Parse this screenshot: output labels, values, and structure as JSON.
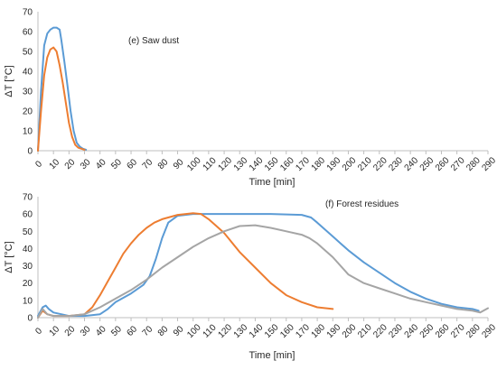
{
  "chart_data": [
    {
      "type": "line",
      "title": "",
      "annotation": "(e) Saw dust",
      "xlabel": "Time [min]",
      "ylabel": "ΔT [°C]",
      "xlim": [
        0,
        290
      ],
      "ylim": [
        0,
        70
      ],
      "x_ticks": [
        0,
        10,
        20,
        30,
        40,
        50,
        60,
        70,
        80,
        90,
        100,
        110,
        120,
        130,
        140,
        150,
        160,
        170,
        180,
        190,
        200,
        210,
        220,
        230,
        240,
        250,
        260,
        270,
        280,
        290
      ],
      "y_ticks": [
        0,
        10,
        20,
        30,
        40,
        50,
        60,
        70
      ],
      "grid": false,
      "series": [
        {
          "color": "#5B9BD5",
          "points": [
            [
              0,
              0
            ],
            [
              2,
              30
            ],
            [
              4,
              53
            ],
            [
              6,
              59
            ],
            [
              8,
              61
            ],
            [
              10,
              62
            ],
            [
              12,
              62
            ],
            [
              14,
              61
            ],
            [
              15,
              56
            ],
            [
              17,
              45
            ],
            [
              19,
              33
            ],
            [
              21,
              20
            ],
            [
              23,
              10
            ],
            [
              25,
              4
            ],
            [
              27,
              2
            ],
            [
              29,
              1
            ],
            [
              31,
              0.5
            ]
          ]
        },
        {
          "color": "#ED7D31",
          "points": [
            [
              0,
              0
            ],
            [
              2,
              20
            ],
            [
              4,
              38
            ],
            [
              6,
              47
            ],
            [
              8,
              51
            ],
            [
              10,
              52
            ],
            [
              12,
              50
            ],
            [
              14,
              43
            ],
            [
              16,
              34
            ],
            [
              18,
              24
            ],
            [
              20,
              14
            ],
            [
              22,
              7
            ],
            [
              24,
              3
            ],
            [
              26,
              1.5
            ],
            [
              28,
              1
            ],
            [
              30,
              0.5
            ]
          ]
        }
      ]
    },
    {
      "type": "line",
      "title": "",
      "annotation": "(f) Forest residues",
      "xlabel": "Time  [min]",
      "ylabel": "ΔT [°C]",
      "xlim": [
        0,
        290
      ],
      "ylim": [
        0,
        70
      ],
      "x_ticks": [
        0,
        10,
        20,
        30,
        40,
        50,
        60,
        70,
        80,
        90,
        100,
        110,
        120,
        130,
        140,
        150,
        160,
        170,
        180,
        190,
        200,
        210,
        220,
        230,
        240,
        250,
        260,
        270,
        280,
        290
      ],
      "y_ticks": [
        0,
        10,
        20,
        30,
        40,
        50,
        60,
        70
      ],
      "grid": false,
      "series": [
        {
          "color": "#5B9BD5",
          "points": [
            [
              0,
              1
            ],
            [
              3,
              6
            ],
            [
              5,
              7
            ],
            [
              7,
              5
            ],
            [
              10,
              3
            ],
            [
              15,
              2
            ],
            [
              20,
              1
            ],
            [
              30,
              1
            ],
            [
              40,
              2
            ],
            [
              45,
              5
            ],
            [
              50,
              9
            ],
            [
              60,
              14
            ],
            [
              68,
              19
            ],
            [
              72,
              24
            ],
            [
              76,
              34
            ],
            [
              80,
              46
            ],
            [
              84,
              55
            ],
            [
              90,
              59
            ],
            [
              100,
              60
            ],
            [
              110,
              60
            ],
            [
              130,
              60
            ],
            [
              150,
              60
            ],
            [
              170,
              59.5
            ],
            [
              176,
              58
            ],
            [
              180,
              55
            ],
            [
              185,
              51
            ],
            [
              190,
              47
            ],
            [
              195,
              43
            ],
            [
              200,
              39
            ],
            [
              210,
              32
            ],
            [
              220,
              26
            ],
            [
              230,
              20
            ],
            [
              240,
              15
            ],
            [
              250,
              11
            ],
            [
              260,
              8
            ],
            [
              270,
              6
            ],
            [
              280,
              5
            ],
            [
              284,
              4
            ]
          ]
        },
        {
          "color": "#ED7D31",
          "points": [
            [
              0,
              0
            ],
            [
              3,
              4
            ],
            [
              6,
              2
            ],
            [
              10,
              1
            ],
            [
              20,
              1
            ],
            [
              30,
              2
            ],
            [
              35,
              6
            ],
            [
              40,
              13
            ],
            [
              45,
              21
            ],
            [
              50,
              29
            ],
            [
              55,
              37
            ],
            [
              60,
              43
            ],
            [
              65,
              48
            ],
            [
              70,
              52
            ],
            [
              75,
              55
            ],
            [
              80,
              57
            ],
            [
              90,
              59.5
            ],
            [
              100,
              60.5
            ],
            [
              105,
              60
            ],
            [
              110,
              57
            ],
            [
              115,
              53
            ],
            [
              120,
              49
            ],
            [
              130,
              38
            ],
            [
              140,
              29
            ],
            [
              150,
              20
            ],
            [
              160,
              13
            ],
            [
              170,
              9
            ],
            [
              180,
              6
            ],
            [
              190,
              5
            ]
          ]
        },
        {
          "color": "#A5A5A5",
          "points": [
            [
              0,
              0
            ],
            [
              3,
              5
            ],
            [
              6,
              2
            ],
            [
              10,
              1
            ],
            [
              20,
              1
            ],
            [
              30,
              2
            ],
            [
              35,
              4
            ],
            [
              40,
              6
            ],
            [
              50,
              11
            ],
            [
              60,
              16
            ],
            [
              70,
              22
            ],
            [
              80,
              29
            ],
            [
              90,
              35
            ],
            [
              100,
              41
            ],
            [
              110,
              46
            ],
            [
              120,
              50
            ],
            [
              130,
              53
            ],
            [
              140,
              53.5
            ],
            [
              150,
              52
            ],
            [
              160,
              50
            ],
            [
              170,
              48
            ],
            [
              175,
              46
            ],
            [
              180,
              43
            ],
            [
              190,
              35
            ],
            [
              200,
              25
            ],
            [
              210,
              20
            ],
            [
              220,
              17
            ],
            [
              230,
              14
            ],
            [
              240,
              11
            ],
            [
              250,
              9
            ],
            [
              260,
              7
            ],
            [
              270,
              5
            ],
            [
              280,
              4
            ],
            [
              285,
              3
            ],
            [
              290,
              5.5
            ]
          ]
        }
      ]
    }
  ]
}
